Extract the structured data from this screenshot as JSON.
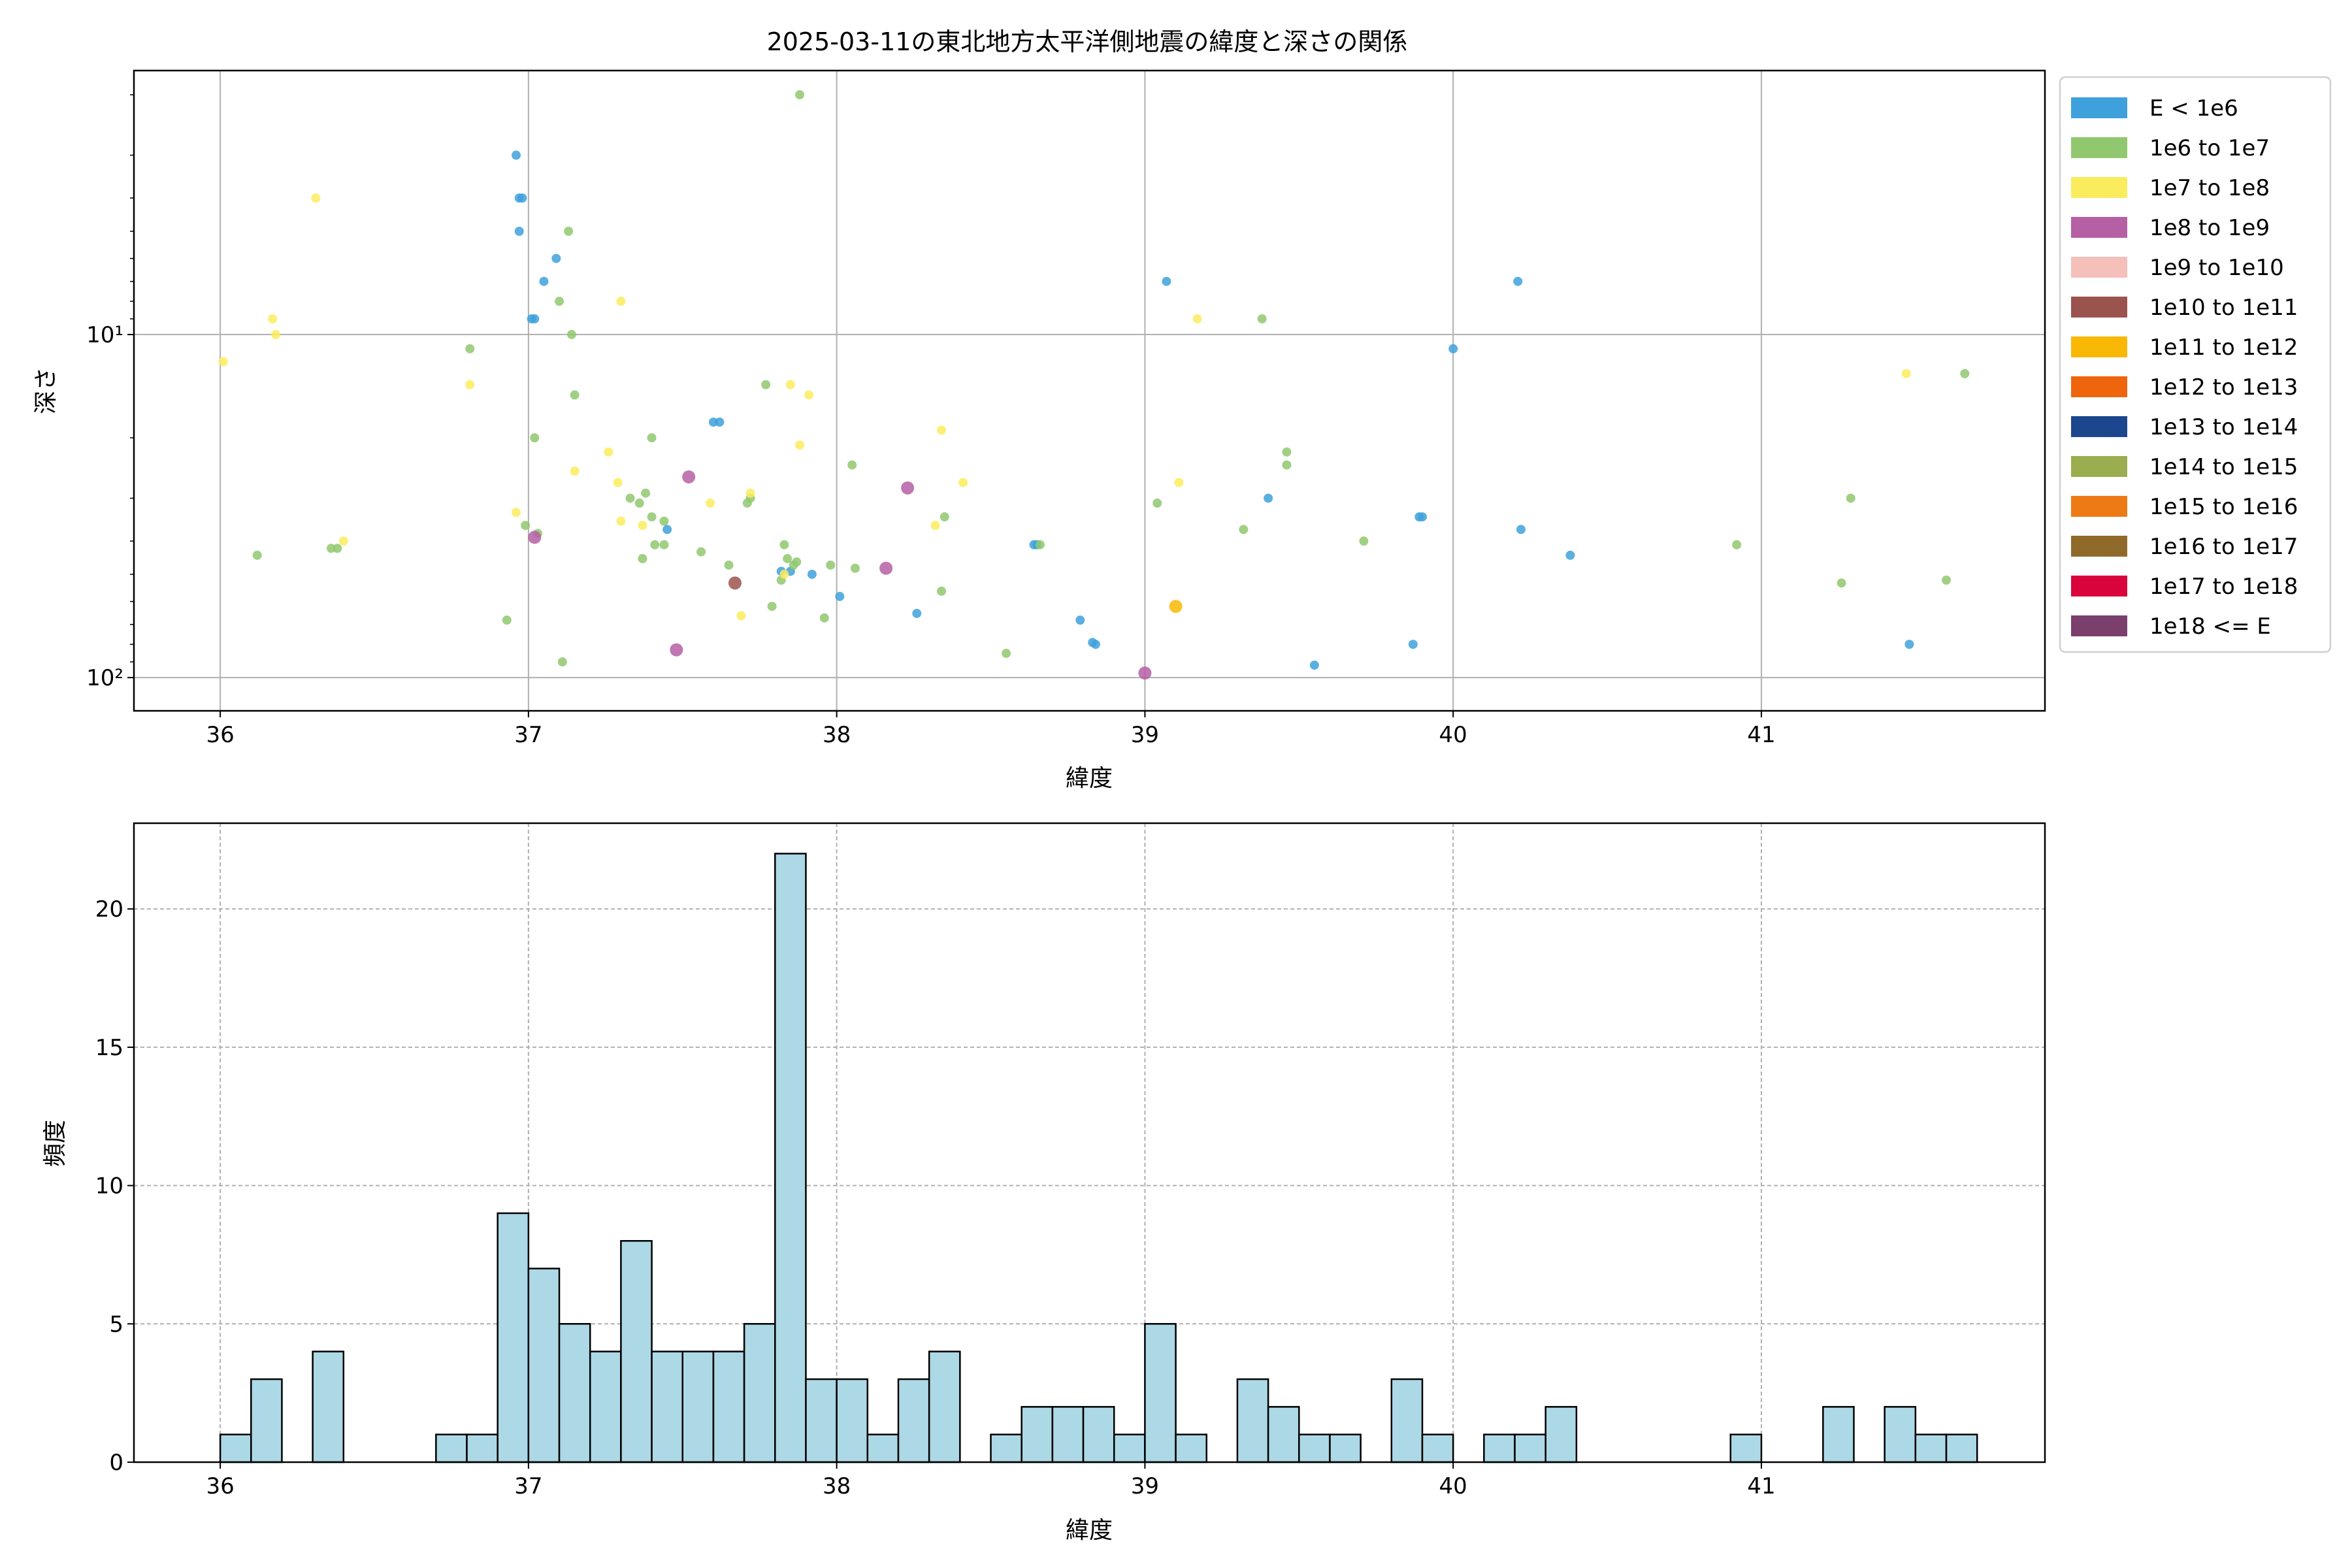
{
  "chart_data": [
    {
      "type": "scatter",
      "title": "2025-03-11の東北地方太平洋側地震の緯度と深さの関係",
      "xlabel": "緯度",
      "ylabel": "深さ",
      "xlim": [
        35.72,
        41.92
      ],
      "ylim": [
        125,
        1.7
      ],
      "y_scale": "log",
      "y_inverted": true,
      "grid": true,
      "x_ticks": [
        "36",
        "37",
        "38",
        "39",
        "40",
        "41"
      ],
      "y_ticks": [
        "10¹",
        "10²"
      ],
      "legend_position": "outside-right",
      "legend": [
        {
          "label": "E < 1e6",
          "color": "#3ea1dc"
        },
        {
          "label": "1e6 to 1e7",
          "color": "#91c86f"
        },
        {
          "label": "1e7 to 1e8",
          "color": "#fbec5d"
        },
        {
          "label": "1e8 to 1e9",
          "color": "#b55fa5"
        },
        {
          "label": "1e9 to 1e10",
          "color": "#f5bfba"
        },
        {
          "label": "1e10 to 1e11",
          "color": "#9b534e"
        },
        {
          "label": "1e11 to 1e12",
          "color": "#f8b805"
        },
        {
          "label": "1e12 to 1e13",
          "color": "#ee650d"
        },
        {
          "label": "1e13 to 1e14",
          "color": "#1c468d"
        },
        {
          "label": "1e14 to 1e15",
          "color": "#9aad4f"
        },
        {
          "label": "1e15 to 1e16",
          "color": "#ee7a15"
        },
        {
          "label": "1e16 to 1e17",
          "color": "#8f6a2a"
        },
        {
          "label": "1e17 to 1e18",
          "color": "#d9043c"
        },
        {
          "label": "1e18 <= E",
          "color": "#7a3f6d"
        }
      ],
      "series": [
        {
          "label": "E < 1e6",
          "points": [
            [
              36.96,
              3.0
            ],
            [
              36.97,
              4.0
            ],
            [
              36.98,
              4.0
            ],
            [
              36.97,
              5.0
            ],
            [
              37.01,
              9.0
            ],
            [
              37.02,
              9.0
            ],
            [
              37.05,
              7.0
            ],
            [
              37.09,
              6.0
            ],
            [
              37.45,
              37.0
            ],
            [
              37.6,
              18.0
            ],
            [
              37.62,
              18.0
            ],
            [
              37.82,
              49.0
            ],
            [
              37.85,
              49.0
            ],
            [
              37.92,
              50.0
            ],
            [
              38.01,
              58.0
            ],
            [
              38.26,
              65.0
            ],
            [
              38.64,
              41.0
            ],
            [
              38.65,
              41.0
            ],
            [
              38.79,
              68.0
            ],
            [
              38.83,
              79.0
            ],
            [
              38.84,
              80.0
            ],
            [
              39.07,
              7.0
            ],
            [
              39.4,
              30.0
            ],
            [
              39.55,
              92.0
            ],
            [
              39.87,
              80.0
            ],
            [
              39.89,
              34.0
            ],
            [
              39.9,
              34.0
            ],
            [
              40.0,
              11.0
            ],
            [
              40.21,
              7.0
            ],
            [
              40.22,
              37.0
            ],
            [
              40.38,
              44.0
            ],
            [
              41.48,
              80.0
            ]
          ]
        },
        {
          "label": "1e6 to 1e7",
          "points": [
            [
              36.12,
              44.0
            ],
            [
              36.36,
              42.0
            ],
            [
              36.38,
              42.0
            ],
            [
              36.81,
              11.0
            ],
            [
              36.93,
              68.0
            ],
            [
              36.99,
              36.0
            ],
            [
              37.02,
              20.0
            ],
            [
              37.03,
              38.0
            ],
            [
              37.1,
              8.0
            ],
            [
              37.11,
              90.0
            ],
            [
              37.13,
              5.0
            ],
            [
              37.14,
              10.0
            ],
            [
              37.15,
              15.0
            ],
            [
              37.33,
              30.0
            ],
            [
              37.36,
              31.0
            ],
            [
              37.37,
              45.0
            ],
            [
              37.38,
              29.0
            ],
            [
              37.4,
              20.0
            ],
            [
              37.4,
              34.0
            ],
            [
              37.41,
              41.0
            ],
            [
              37.44,
              41.0
            ],
            [
              37.44,
              35.0
            ],
            [
              37.56,
              43.0
            ],
            [
              37.65,
              47.0
            ],
            [
              37.71,
              31.0
            ],
            [
              37.72,
              30.0
            ],
            [
              37.77,
              14.0
            ],
            [
              37.79,
              62.0
            ],
            [
              37.82,
              52.0
            ],
            [
              37.83,
              41.0
            ],
            [
              37.84,
              45.0
            ],
            [
              37.86,
              47.0
            ],
            [
              37.87,
              46.0
            ],
            [
              37.88,
              2.0
            ],
            [
              37.96,
              67.0
            ],
            [
              37.98,
              47.0
            ],
            [
              38.05,
              24.0
            ],
            [
              38.06,
              48.0
            ],
            [
              38.34,
              56.0
            ],
            [
              38.35,
              34.0
            ],
            [
              38.55,
              85.0
            ],
            [
              38.66,
              41.0
            ],
            [
              39.04,
              31.0
            ],
            [
              39.32,
              37.0
            ],
            [
              39.38,
              9.0
            ],
            [
              39.46,
              22.0
            ],
            [
              39.46,
              24.0
            ],
            [
              39.71,
              40.0
            ],
            [
              40.92,
              41.0
            ],
            [
              41.26,
              53.0
            ],
            [
              41.29,
              30.0
            ],
            [
              41.6,
              52.0
            ],
            [
              41.66,
              13.0
            ]
          ]
        },
        {
          "label": "1e7 to 1e8",
          "points": [
            [
              36.01,
              12.0
            ],
            [
              36.17,
              9.0
            ],
            [
              36.18,
              10.0
            ],
            [
              36.31,
              4.0
            ],
            [
              36.4,
              40.0
            ],
            [
              36.81,
              14.0
            ],
            [
              36.96,
              33.0
            ],
            [
              37.15,
              25.0
            ],
            [
              37.26,
              22.0
            ],
            [
              37.29,
              27.0
            ],
            [
              37.3,
              8.0
            ],
            [
              37.3,
              35.0
            ],
            [
              37.37,
              36.0
            ],
            [
              37.59,
              31.0
            ],
            [
              37.69,
              66.0
            ],
            [
              37.72,
              29.0
            ],
            [
              37.83,
              50.0
            ],
            [
              37.85,
              14.0
            ],
            [
              37.88,
              21.0
            ],
            [
              37.91,
              15.0
            ],
            [
              38.32,
              36.0
            ],
            [
              38.34,
              19.0
            ],
            [
              38.41,
              27.0
            ],
            [
              39.11,
              27.0
            ],
            [
              39.17,
              9.0
            ],
            [
              41.47,
              13.0
            ]
          ]
        },
        {
          "label": "1e8 to 1e9",
          "points": [
            [
              37.02,
              39.0
            ],
            [
              37.48,
              83.0
            ],
            [
              37.52,
              26.0
            ],
            [
              38.16,
              48.0
            ],
            [
              38.23,
              28.0
            ],
            [
              39.0,
              97.0
            ]
          ]
        },
        {
          "label": "1e9 to 1e10",
          "points": []
        },
        {
          "label": "1e10 to 1e11",
          "points": [
            [
              37.67,
              53.0
            ]
          ]
        },
        {
          "label": "1e11 to 1e12",
          "points": [
            [
              39.1,
              62.0
            ]
          ]
        }
      ]
    },
    {
      "type": "bar",
      "subtype": "histogram",
      "xlabel": "緯度",
      "ylabel": "頻度",
      "xlim": [
        35.72,
        41.92
      ],
      "ylim": [
        0,
        23.1
      ],
      "x_ticks": [
        "36",
        "37",
        "38",
        "39",
        "40",
        "41"
      ],
      "y_ticks": [
        "0",
        "5",
        "10",
        "15",
        "20"
      ],
      "grid": true,
      "bin_start": 36.0,
      "bin_width": 0.1,
      "values": [
        1,
        3,
        0,
        4,
        0,
        0,
        0,
        1,
        1,
        9,
        7,
        5,
        4,
        8,
        4,
        4,
        4,
        5,
        22,
        3,
        3,
        1,
        3,
        4,
        0,
        1,
        2,
        2,
        2,
        1,
        5,
        1,
        0,
        3,
        2,
        1,
        1,
        0,
        3,
        1,
        0,
        1,
        1,
        2,
        0,
        0,
        0,
        0,
        0,
        1,
        0,
        0,
        2,
        0,
        2,
        1,
        1
      ]
    }
  ]
}
